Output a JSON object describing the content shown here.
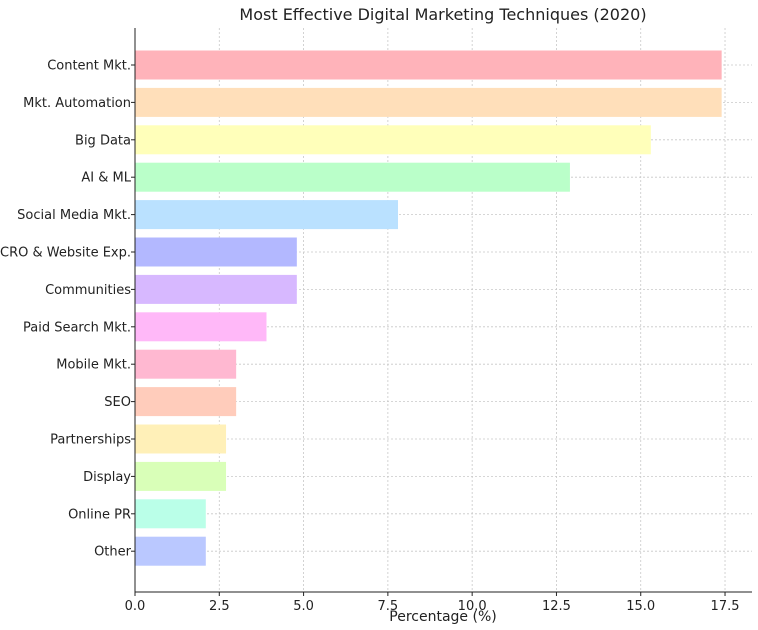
{
  "chart_data": {
    "type": "bar",
    "orientation": "horizontal",
    "title": "Most Effective Digital Marketing Techniques (2020)",
    "xlabel": "Percentage (%)",
    "ylabel": "",
    "categories": [
      "Content Mkt.",
      "Mkt. Automation",
      "Big Data",
      "AI & ML",
      "Social Media Mkt.",
      "CRO & Website Exp.",
      "Communities",
      "Paid Search Mkt.",
      "Mobile Mkt.",
      "SEO",
      "Partnerships",
      "Display",
      "Online PR",
      "Other"
    ],
    "values": [
      17.4,
      17.4,
      15.3,
      12.9,
      7.8,
      4.8,
      4.8,
      3.9,
      3.0,
      3.0,
      2.7,
      2.7,
      2.1,
      2.1
    ],
    "colors": [
      "#ffb3ba",
      "#ffdfba",
      "#ffffba",
      "#baffc9",
      "#bae1ff",
      "#b3b8ff",
      "#d7b8ff",
      "#ffb8f8",
      "#ffb8d1",
      "#ffccbb",
      "#fff0b8",
      "#d9ffb8",
      "#baffe8",
      "#bac8ff"
    ],
    "xlim": [
      0,
      18.3
    ],
    "xticks": [
      0.0,
      2.5,
      5.0,
      7.5,
      10.0,
      12.5,
      15.0,
      17.5
    ],
    "xtick_labels": [
      "0.0",
      "2.5",
      "5.0",
      "7.5",
      "10.0",
      "12.5",
      "15.0",
      "17.5"
    ],
    "grid": true
  }
}
